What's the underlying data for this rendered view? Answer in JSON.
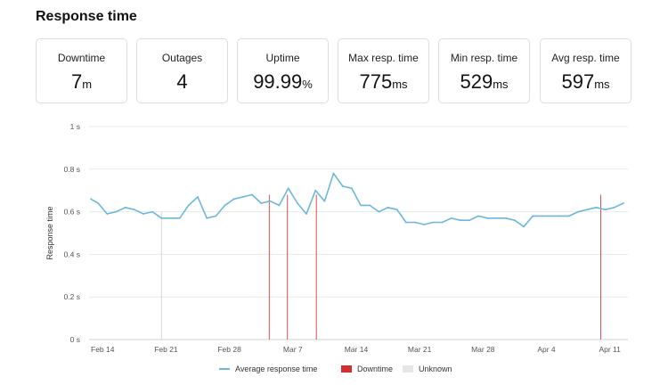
{
  "page": {
    "title": "Response time"
  },
  "stats": [
    {
      "label": "Downtime",
      "value": "7",
      "unit": "m"
    },
    {
      "label": "Outages",
      "value": "4",
      "unit": ""
    },
    {
      "label": "Uptime",
      "value": "99.99",
      "unit": "%"
    },
    {
      "label": "Max resp. time",
      "value": "775",
      "unit": "ms"
    },
    {
      "label": "Min resp. time",
      "value": "529",
      "unit": "ms"
    },
    {
      "label": "Avg resp. time",
      "value": "597",
      "unit": "ms"
    }
  ],
  "chart_data": {
    "type": "line",
    "title": "",
    "xlabel": "",
    "ylabel": "Response time",
    "x_tick_labels": [
      "Feb 14",
      "Feb 21",
      "Feb 28",
      "Mar 7",
      "Mar 14",
      "Mar 21",
      "Mar 28",
      "Apr 4",
      "Apr 11"
    ],
    "x_tick_days": [
      0,
      7,
      14,
      21,
      28,
      35,
      42,
      49,
      56
    ],
    "xlim": [
      -1.5,
      58
    ],
    "y_tick_labels": [
      "0 s",
      "0.2 s",
      "0.4 s",
      "0.6 s",
      "0.8 s",
      "1 s"
    ],
    "y_tick_values": [
      0,
      0.2,
      0.4,
      0.6,
      0.8,
      1.0
    ],
    "ylim": [
      0,
      1
    ],
    "grid": true,
    "legend_position": "bottom-center",
    "series": [
      {
        "name": "Average response time",
        "color": "#6bb8dc",
        "x": [
          -1.3,
          -0.5,
          0.5,
          1.5,
          2.5,
          3.5,
          4.5,
          5.5,
          6.5,
          7.5,
          8.5,
          9.5,
          10.5,
          11.5,
          12.5,
          13.5,
          14.5,
          15.5,
          16.5,
          17.5,
          18.5,
          19.5,
          20.5,
          21.5,
          22.5,
          23.5,
          24.5,
          25.5,
          26.5,
          27.5,
          28.5,
          29.5,
          30.5,
          31.5,
          32.5,
          33.5,
          34.5,
          35.5,
          36.5,
          37.5,
          38.5,
          39.5,
          40.5,
          41.5,
          42.5,
          43.5,
          44.5,
          45.5,
          46.5,
          47.5,
          48.5,
          49.5,
          50.5,
          51.5,
          52.5,
          53.5,
          54.5,
          55.5,
          56.5,
          57.5
        ],
        "y": [
          0.66,
          0.64,
          0.59,
          0.6,
          0.62,
          0.61,
          0.59,
          0.6,
          0.57,
          0.57,
          0.57,
          0.63,
          0.67,
          0.57,
          0.58,
          0.63,
          0.66,
          0.67,
          0.68,
          0.64,
          0.65,
          0.63,
          0.71,
          0.64,
          0.59,
          0.7,
          0.65,
          0.78,
          0.72,
          0.71,
          0.63,
          0.63,
          0.6,
          0.62,
          0.61,
          0.55,
          0.55,
          0.54,
          0.55,
          0.55,
          0.57,
          0.56,
          0.56,
          0.58,
          0.57,
          0.57,
          0.57,
          0.56,
          0.53,
          0.58,
          0.58,
          0.58,
          0.58,
          0.58,
          0.6,
          0.61,
          0.62,
          0.61,
          0.62,
          0.64
        ]
      }
    ],
    "events": [
      {
        "type": "Unknown",
        "color": "#d9d9d9",
        "x": 6.5
      },
      {
        "type": "Downtime",
        "color": "#d9534f",
        "x": 18.4
      },
      {
        "type": "Downtime",
        "color": "#d9534f",
        "x": 20.4
      },
      {
        "type": "Downtime",
        "color": "#d9534f",
        "x": 23.6
      },
      {
        "type": "Downtime",
        "color": "#d9534f",
        "x": 55.0
      }
    ],
    "legend": [
      {
        "label": "Average response time",
        "kind": "line",
        "color": "#6bb8dc"
      },
      {
        "label": "Downtime",
        "kind": "swatch",
        "color": "#d0312d"
      },
      {
        "label": "Unknown",
        "kind": "swatch",
        "color": "#e6e6e6"
      }
    ]
  }
}
